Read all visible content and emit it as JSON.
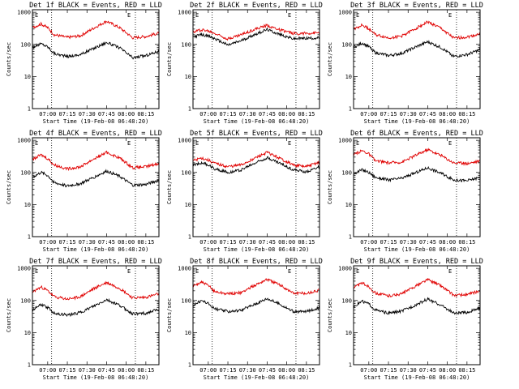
{
  "chart_data": [
    {
      "type": "line",
      "title": "Det 1f BLACK = Events, RED = LLD",
      "xlabel": "Start Time (19-Feb-08 06:48:20)",
      "ylabel": "Counts/sec",
      "x_range": [
        "06:48:20",
        "08:25:00"
      ],
      "xticks": [
        "07:00",
        "07:15",
        "07:30",
        "07:45",
        "08:00",
        "08:15"
      ],
      "yticks": [
        "1",
        "10",
        "100",
        "1000"
      ],
      "yscale": "log",
      "ylim": [
        1,
        1200
      ],
      "vlines": [
        "07:03",
        "08:07"
      ],
      "corner_labels": [
        "E",
        "E"
      ],
      "series": [
        {
          "color": "#000000",
          "x": [
            "06:48",
            "06:55",
            "07:00",
            "07:05",
            "07:15",
            "07:25",
            "07:35",
            "07:45",
            "07:55",
            "08:05",
            "08:15",
            "08:25"
          ],
          "y": [
            80,
            105,
            85,
            52,
            42,
            48,
            75,
            115,
            78,
            38,
            45,
            62
          ]
        },
        {
          "color": "#e00000",
          "x": [
            "06:48",
            "06:55",
            "07:00",
            "07:05",
            "07:15",
            "07:25",
            "07:35",
            "07:45",
            "07:55",
            "08:05",
            "08:15",
            "08:25"
          ],
          "y": [
            330,
            430,
            330,
            200,
            165,
            185,
            320,
            530,
            330,
            160,
            175,
            225
          ]
        }
      ]
    },
    {
      "type": "line",
      "title": "Det 2f BLACK = Events, RED = LLD",
      "xlabel": "Start Time (19-Feb-08 06:48:20)",
      "ylabel": "Counts/sec",
      "x_range": [
        "06:48:20",
        "08:25:00"
      ],
      "xticks": [
        "07:00",
        "07:15",
        "07:30",
        "07:45",
        "08:00",
        "08:15"
      ],
      "yticks": [
        "1",
        "10",
        "100",
        "1000"
      ],
      "yscale": "log",
      "ylim": [
        1,
        1200
      ],
      "vlines": [
        "07:03",
        "08:07"
      ],
      "corner_labels": [
        "E",
        "E"
      ],
      "series": [
        {
          "color": "#000000",
          "x": [
            "06:48",
            "06:55",
            "07:00",
            "07:05",
            "07:15",
            "07:25",
            "07:35",
            "07:45",
            "07:55",
            "08:05",
            "08:15",
            "08:25"
          ],
          "y": [
            170,
            200,
            180,
            150,
            95,
            130,
            200,
            290,
            200,
            150,
            155,
            160
          ]
        },
        {
          "color": "#e00000",
          "x": [
            "06:48",
            "06:55",
            "07:00",
            "07:05",
            "07:15",
            "07:25",
            "07:35",
            "07:45",
            "07:55",
            "08:05",
            "08:15",
            "08:25"
          ],
          "y": [
            240,
            290,
            260,
            220,
            150,
            200,
            290,
            390,
            280,
            220,
            220,
            230
          ]
        }
      ]
    },
    {
      "type": "line",
      "title": "Det 3f BLACK = Events, RED = LLD",
      "xlabel": "Start Time (19-Feb-08 06:48:20)",
      "ylabel": "Counts/sec",
      "x_range": [
        "06:48:20",
        "08:25:00"
      ],
      "xticks": [
        "07:00",
        "07:15",
        "07:30",
        "07:45",
        "08:00",
        "08:15"
      ],
      "yticks": [
        "1",
        "10",
        "100",
        "1000"
      ],
      "yscale": "log",
      "ylim": [
        1,
        1200
      ],
      "vlines": [
        "07:03",
        "08:07"
      ],
      "corner_labels": [
        "E",
        "E"
      ],
      "series": [
        {
          "color": "#000000",
          "x": [
            "06:48",
            "06:55",
            "07:00",
            "07:05",
            "07:15",
            "07:25",
            "07:35",
            "07:45",
            "07:55",
            "08:05",
            "08:15",
            "08:25"
          ],
          "y": [
            80,
            110,
            85,
            55,
            45,
            52,
            80,
            120,
            80,
            42,
            48,
            68
          ]
        },
        {
          "color": "#e00000",
          "x": [
            "06:48",
            "06:55",
            "07:00",
            "07:05",
            "07:15",
            "07:25",
            "07:35",
            "07:45",
            "07:55",
            "08:05",
            "08:15",
            "08:25"
          ],
          "y": [
            300,
            400,
            310,
            200,
            160,
            180,
            300,
            500,
            320,
            155,
            170,
            210
          ]
        }
      ]
    },
    {
      "type": "line",
      "title": "Det 4f BLACK = Events, RED = LLD",
      "xlabel": "Start Time (19-Feb-08 06:48:20)",
      "ylabel": "Counts/sec",
      "x_range": [
        "06:48:20",
        "08:25:00"
      ],
      "xticks": [
        "07:00",
        "07:15",
        "07:30",
        "07:45",
        "08:00",
        "08:15"
      ],
      "yticks": [
        "1",
        "10",
        "100",
        "1000"
      ],
      "yscale": "log",
      "ylim": [
        1,
        1200
      ],
      "vlines": [
        "07:03",
        "08:07"
      ],
      "corner_labels": [
        "E",
        "E"
      ],
      "series": [
        {
          "color": "#000000",
          "x": [
            "06:48",
            "06:55",
            "07:00",
            "07:05",
            "07:15",
            "07:25",
            "07:35",
            "07:45",
            "07:55",
            "08:05",
            "08:15",
            "08:25"
          ],
          "y": [
            70,
            100,
            80,
            48,
            38,
            45,
            70,
            110,
            75,
            40,
            42,
            58
          ]
        },
        {
          "color": "#e00000",
          "x": [
            "06:48",
            "06:55",
            "07:00",
            "07:05",
            "07:15",
            "07:25",
            "07:35",
            "07:45",
            "07:55",
            "08:05",
            "08:15",
            "08:25"
          ],
          "y": [
            250,
            350,
            270,
            170,
            130,
            150,
            260,
            420,
            280,
            140,
            150,
            190
          ]
        }
      ]
    },
    {
      "type": "line",
      "title": "Det 5f BLACK = Events, RED = LLD",
      "xlabel": "Start Time (19-Feb-08 06:48:20)",
      "ylabel": "Counts/sec",
      "x_range": [
        "06:48:20",
        "08:25:00"
      ],
      "xticks": [
        "07:00",
        "07:15",
        "07:30",
        "07:45",
        "08:00",
        "08:15"
      ],
      "yticks": [
        "1",
        "10",
        "100",
        "1000"
      ],
      "yscale": "log",
      "ylim": [
        1,
        1200
      ],
      "vlines": [
        "07:03",
        "08:07"
      ],
      "corner_labels": [
        "E",
        "E"
      ],
      "series": [
        {
          "color": "#000000",
          "x": [
            "06:48",
            "06:55",
            "07:00",
            "07:05",
            "07:15",
            "07:25",
            "07:35",
            "07:45",
            "07:55",
            "08:05",
            "08:15",
            "08:25"
          ],
          "y": [
            170,
            200,
            170,
            130,
            100,
            120,
            190,
            290,
            190,
            120,
            105,
            150
          ]
        },
        {
          "color": "#e00000",
          "x": [
            "06:48",
            "06:55",
            "07:00",
            "07:05",
            "07:15",
            "07:25",
            "07:35",
            "07:45",
            "07:55",
            "08:05",
            "08:15",
            "08:25"
          ],
          "y": [
            230,
            280,
            240,
            190,
            150,
            170,
            270,
            420,
            270,
            170,
            150,
            210
          ]
        }
      ]
    },
    {
      "type": "line",
      "title": "Det 6f BLACK = Events, RED = LLD",
      "xlabel": "Start Time (19-Feb-08 06:48:20)",
      "ylabel": "Counts/sec",
      "x_range": [
        "06:48:20",
        "08:25:00"
      ],
      "xticks": [
        "07:00",
        "07:15",
        "07:30",
        "07:45",
        "08:00",
        "08:15"
      ],
      "yticks": [
        "1",
        "10",
        "100",
        "1000"
      ],
      "yscale": "log",
      "ylim": [
        1,
        1200
      ],
      "vlines": [
        "07:03",
        "08:07"
      ],
      "corner_labels": [
        "E",
        "E"
      ],
      "series": [
        {
          "color": "#000000",
          "x": [
            "06:48",
            "06:55",
            "07:00",
            "07:05",
            "07:15",
            "07:25",
            "07:35",
            "07:45",
            "07:55",
            "08:05",
            "08:15",
            "08:25"
          ],
          "y": [
            90,
            120,
            100,
            70,
            58,
            65,
            95,
            140,
            95,
            58,
            55,
            70
          ]
        },
        {
          "color": "#e00000",
          "x": [
            "06:48",
            "06:55",
            "07:00",
            "07:05",
            "07:15",
            "07:25",
            "07:35",
            "07:45",
            "07:55",
            "08:05",
            "08:15",
            "08:25"
          ],
          "y": [
            350,
            480,
            380,
            230,
            200,
            210,
            330,
            520,
            340,
            200,
            190,
            230
          ]
        }
      ]
    },
    {
      "type": "line",
      "title": "Det 7f BLACK = Events, RED = LLD",
      "xlabel": "Start Time (19-Feb-08 06:48:20)",
      "ylabel": "Counts/sec",
      "x_range": [
        "06:48:20",
        "08:25:00"
      ],
      "xticks": [
        "07:00",
        "07:15",
        "07:30",
        "07:45",
        "08:00",
        "08:15"
      ],
      "yticks": [
        "1",
        "10",
        "100",
        "1000"
      ],
      "yscale": "log",
      "ylim": [
        1,
        1200
      ],
      "vlines": [
        "07:03",
        "08:07"
      ],
      "corner_labels": [
        "E",
        "E"
      ],
      "series": [
        {
          "color": "#000000",
          "x": [
            "06:48",
            "06:55",
            "07:00",
            "07:05",
            "07:15",
            "07:25",
            "07:35",
            "07:45",
            "07:55",
            "08:05",
            "08:15",
            "08:25"
          ],
          "y": [
            50,
            75,
            60,
            40,
            35,
            42,
            65,
            105,
            70,
            38,
            40,
            52
          ]
        },
        {
          "color": "#e00000",
          "x": [
            "06:48",
            "06:55",
            "07:00",
            "07:05",
            "07:15",
            "07:25",
            "07:35",
            "07:45",
            "07:55",
            "08:05",
            "08:15",
            "08:25"
          ],
          "y": [
            180,
            260,
            200,
            130,
            110,
            130,
            230,
            360,
            240,
            120,
            125,
            160
          ]
        }
      ]
    },
    {
      "type": "line",
      "title": "Det 8f BLACK = Events, RED = LLD",
      "xlabel": "Start Time (19-Feb-08 06:48:20)",
      "ylabel": "Counts/sec",
      "x_range": [
        "06:48:20",
        "08:25:00"
      ],
      "xticks": [
        "07:00",
        "07:15",
        "07:30",
        "07:45",
        "08:00",
        "08:15"
      ],
      "yticks": [
        "1",
        "10",
        "100",
        "1000"
      ],
      "yscale": "log",
      "ylim": [
        1,
        1200
      ],
      "vlines": [
        "07:03",
        "08:07"
      ],
      "corner_labels": [
        "E",
        "E"
      ],
      "series": [
        {
          "color": "#000000",
          "x": [
            "06:48",
            "06:55",
            "07:00",
            "07:05",
            "07:15",
            "07:25",
            "07:35",
            "07:45",
            "07:55",
            "08:05",
            "08:15",
            "08:25"
          ],
          "y": [
            70,
            100,
            80,
            55,
            45,
            50,
            75,
            115,
            75,
            45,
            45,
            60
          ]
        },
        {
          "color": "#e00000",
          "x": [
            "06:48",
            "06:55",
            "07:00",
            "07:05",
            "07:15",
            "07:25",
            "07:35",
            "07:45",
            "07:55",
            "08:05",
            "08:15",
            "08:25"
          ],
          "y": [
            280,
            370,
            290,
            190,
            160,
            175,
            290,
            460,
            300,
            170,
            165,
            210
          ]
        }
      ]
    },
    {
      "type": "line",
      "title": "Det 9f BLACK = Events, RED = LLD",
      "xlabel": "Start Time (19-Feb-08 06:48:20)",
      "ylabel": "Counts/sec",
      "x_range": [
        "06:48:20",
        "08:25:00"
      ],
      "xticks": [
        "07:00",
        "07:15",
        "07:30",
        "07:45",
        "08:00",
        "08:15"
      ],
      "yticks": [
        "1",
        "10",
        "100",
        "1000"
      ],
      "yscale": "log",
      "ylim": [
        1,
        1200
      ],
      "vlines": [
        "07:03",
        "08:07"
      ],
      "corner_labels": [
        "E",
        "E"
      ],
      "series": [
        {
          "color": "#000000",
          "x": [
            "06:48",
            "06:55",
            "07:00",
            "07:05",
            "07:15",
            "07:25",
            "07:35",
            "07:45",
            "07:55",
            "08:05",
            "08:15",
            "08:25"
          ],
          "y": [
            65,
            95,
            78,
            50,
            40,
            46,
            70,
            110,
            72,
            40,
            42,
            58
          ]
        },
        {
          "color": "#e00000",
          "x": [
            "06:48",
            "06:55",
            "07:00",
            "07:05",
            "07:15",
            "07:25",
            "07:35",
            "07:45",
            "07:55",
            "08:05",
            "08:15",
            "08:25"
          ],
          "y": [
            250,
            350,
            270,
            170,
            140,
            160,
            270,
            450,
            290,
            145,
            150,
            200
          ]
        }
      ]
    }
  ]
}
